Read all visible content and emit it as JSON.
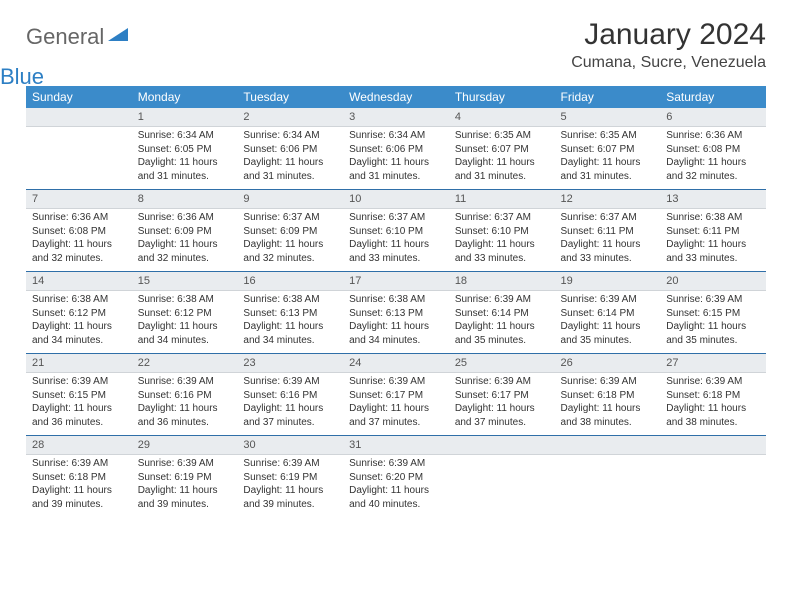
{
  "logo": {
    "general": "General",
    "blue": "Blue"
  },
  "title": "January 2024",
  "location": "Cumana, Sucre, Venezuela",
  "colors": {
    "header_bg": "#3b8bca",
    "header_text": "#ffffff",
    "daynum_bg": "#e9ecef",
    "week_sep": "#2f6fa8",
    "body_bg": "#ffffff"
  },
  "weekdays": [
    "Sunday",
    "Monday",
    "Tuesday",
    "Wednesday",
    "Thursday",
    "Friday",
    "Saturday"
  ],
  "weeks": [
    [
      null,
      {
        "n": "1",
        "sr": "6:34 AM",
        "ss": "6:05 PM",
        "dl": "11 hours and 31 minutes."
      },
      {
        "n": "2",
        "sr": "6:34 AM",
        "ss": "6:06 PM",
        "dl": "11 hours and 31 minutes."
      },
      {
        "n": "3",
        "sr": "6:34 AM",
        "ss": "6:06 PM",
        "dl": "11 hours and 31 minutes."
      },
      {
        "n": "4",
        "sr": "6:35 AM",
        "ss": "6:07 PM",
        "dl": "11 hours and 31 minutes."
      },
      {
        "n": "5",
        "sr": "6:35 AM",
        "ss": "6:07 PM",
        "dl": "11 hours and 31 minutes."
      },
      {
        "n": "6",
        "sr": "6:36 AM",
        "ss": "6:08 PM",
        "dl": "11 hours and 32 minutes."
      }
    ],
    [
      {
        "n": "7",
        "sr": "6:36 AM",
        "ss": "6:08 PM",
        "dl": "11 hours and 32 minutes."
      },
      {
        "n": "8",
        "sr": "6:36 AM",
        "ss": "6:09 PM",
        "dl": "11 hours and 32 minutes."
      },
      {
        "n": "9",
        "sr": "6:37 AM",
        "ss": "6:09 PM",
        "dl": "11 hours and 32 minutes."
      },
      {
        "n": "10",
        "sr": "6:37 AM",
        "ss": "6:10 PM",
        "dl": "11 hours and 33 minutes."
      },
      {
        "n": "11",
        "sr": "6:37 AM",
        "ss": "6:10 PM",
        "dl": "11 hours and 33 minutes."
      },
      {
        "n": "12",
        "sr": "6:37 AM",
        "ss": "6:11 PM",
        "dl": "11 hours and 33 minutes."
      },
      {
        "n": "13",
        "sr": "6:38 AM",
        "ss": "6:11 PM",
        "dl": "11 hours and 33 minutes."
      }
    ],
    [
      {
        "n": "14",
        "sr": "6:38 AM",
        "ss": "6:12 PM",
        "dl": "11 hours and 34 minutes."
      },
      {
        "n": "15",
        "sr": "6:38 AM",
        "ss": "6:12 PM",
        "dl": "11 hours and 34 minutes."
      },
      {
        "n": "16",
        "sr": "6:38 AM",
        "ss": "6:13 PM",
        "dl": "11 hours and 34 minutes."
      },
      {
        "n": "17",
        "sr": "6:38 AM",
        "ss": "6:13 PM",
        "dl": "11 hours and 34 minutes."
      },
      {
        "n": "18",
        "sr": "6:39 AM",
        "ss": "6:14 PM",
        "dl": "11 hours and 35 minutes."
      },
      {
        "n": "19",
        "sr": "6:39 AM",
        "ss": "6:14 PM",
        "dl": "11 hours and 35 minutes."
      },
      {
        "n": "20",
        "sr": "6:39 AM",
        "ss": "6:15 PM",
        "dl": "11 hours and 35 minutes."
      }
    ],
    [
      {
        "n": "21",
        "sr": "6:39 AM",
        "ss": "6:15 PM",
        "dl": "11 hours and 36 minutes."
      },
      {
        "n": "22",
        "sr": "6:39 AM",
        "ss": "6:16 PM",
        "dl": "11 hours and 36 minutes."
      },
      {
        "n": "23",
        "sr": "6:39 AM",
        "ss": "6:16 PM",
        "dl": "11 hours and 37 minutes."
      },
      {
        "n": "24",
        "sr": "6:39 AM",
        "ss": "6:17 PM",
        "dl": "11 hours and 37 minutes."
      },
      {
        "n": "25",
        "sr": "6:39 AM",
        "ss": "6:17 PM",
        "dl": "11 hours and 37 minutes."
      },
      {
        "n": "26",
        "sr": "6:39 AM",
        "ss": "6:18 PM",
        "dl": "11 hours and 38 minutes."
      },
      {
        "n": "27",
        "sr": "6:39 AM",
        "ss": "6:18 PM",
        "dl": "11 hours and 38 minutes."
      }
    ],
    [
      {
        "n": "28",
        "sr": "6:39 AM",
        "ss": "6:18 PM",
        "dl": "11 hours and 39 minutes."
      },
      {
        "n": "29",
        "sr": "6:39 AM",
        "ss": "6:19 PM",
        "dl": "11 hours and 39 minutes."
      },
      {
        "n": "30",
        "sr": "6:39 AM",
        "ss": "6:19 PM",
        "dl": "11 hours and 39 minutes."
      },
      {
        "n": "31",
        "sr": "6:39 AM",
        "ss": "6:20 PM",
        "dl": "11 hours and 40 minutes."
      },
      null,
      null,
      null
    ]
  ],
  "labels": {
    "sunrise": "Sunrise: ",
    "sunset": "Sunset: ",
    "daylight": "Daylight: "
  }
}
